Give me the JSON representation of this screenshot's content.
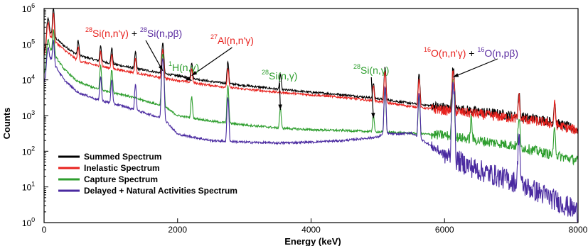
{
  "chart_data": {
    "type": "line",
    "title": "",
    "xlabel": "Energy (keV)",
    "ylabel": "Counts",
    "xlim": [
      0,
      8000
    ],
    "ylim": [
      1,
      1000000
    ],
    "yscale": "log",
    "grid": false,
    "legend_position": "bottom-left",
    "x_ticks": [
      0,
      2000,
      4000,
      6000,
      8000
    ],
    "x_tick_labels": [
      "0",
      "2000",
      "4000",
      "6000",
      "8000"
    ],
    "y_ticks": [
      1,
      10,
      100,
      1000,
      10000,
      100000,
      1000000
    ],
    "y_tick_labels": [
      {
        "base": "10",
        "exp": "0"
      },
      {
        "base": "10",
        "exp": "1"
      },
      {
        "base": "10",
        "exp": "2"
      },
      {
        "base": "10",
        "exp": "3"
      },
      {
        "base": "10",
        "exp": "4"
      },
      {
        "base": "10",
        "exp": "5"
      },
      {
        "base": "10",
        "exp": "6"
      }
    ],
    "series": [
      {
        "name": "Summed Spectrum",
        "color": "#000000",
        "baseline": [
          [
            0,
            60000
          ],
          [
            100,
            200000
          ],
          [
            300,
            90000
          ],
          [
            500,
            50000
          ],
          [
            800,
            35000
          ],
          [
            1200,
            24000
          ],
          [
            1800,
            15000
          ],
          [
            2500,
            9000
          ],
          [
            3000,
            7000
          ],
          [
            3500,
            5500
          ],
          [
            4000,
            4500
          ],
          [
            4500,
            3800
          ],
          [
            5000,
            3000
          ],
          [
            5500,
            2200
          ],
          [
            6000,
            1700
          ],
          [
            6500,
            1300
          ],
          [
            7000,
            1000
          ],
          [
            7500,
            750
          ],
          [
            8000,
            400
          ]
        ],
        "peaks": [
          [
            60,
            400000,
            15
          ],
          [
            140,
            900000,
            10
          ],
          [
            511,
            80000,
            10
          ],
          [
            847,
            60000,
            10
          ],
          [
            1014,
            50000,
            10
          ],
          [
            1369,
            40000,
            10
          ],
          [
            1778,
            90000,
            12
          ],
          [
            2211,
            20000,
            10
          ],
          [
            2754,
            25000,
            10
          ],
          [
            3540,
            9000,
            10
          ],
          [
            4934,
            5000,
            10
          ],
          [
            5108,
            20000,
            10
          ],
          [
            5618,
            12000,
            10
          ],
          [
            6129,
            20000,
            12
          ],
          [
            7115,
            3000,
            10
          ],
          [
            7650,
            2000,
            10
          ]
        ]
      },
      {
        "name": "Inelastic Spectrum",
        "color": "#e8221e",
        "baseline": [
          [
            0,
            50000
          ],
          [
            100,
            150000
          ],
          [
            300,
            70000
          ],
          [
            500,
            35000
          ],
          [
            800,
            25000
          ],
          [
            1200,
            18000
          ],
          [
            1800,
            11000
          ],
          [
            2500,
            7000
          ],
          [
            3000,
            5500
          ],
          [
            3500,
            4500
          ],
          [
            4000,
            3800
          ],
          [
            4500,
            3200
          ],
          [
            5000,
            2500
          ],
          [
            5500,
            1800
          ],
          [
            6000,
            1400
          ],
          [
            6500,
            1100
          ],
          [
            7000,
            850
          ],
          [
            7500,
            650
          ],
          [
            8000,
            380
          ]
        ],
        "peaks": [
          [
            60,
            300000,
            15
          ],
          [
            140,
            600000,
            10
          ],
          [
            511,
            50000,
            10
          ],
          [
            847,
            40000,
            10
          ],
          [
            1014,
            30000,
            10
          ],
          [
            1369,
            25000,
            10
          ],
          [
            1778,
            60000,
            12
          ],
          [
            2211,
            12000,
            10
          ],
          [
            2754,
            15000,
            10
          ],
          [
            4934,
            4200,
            10
          ],
          [
            5108,
            15000,
            10
          ],
          [
            5618,
            9000,
            10
          ],
          [
            6129,
            15000,
            12
          ],
          [
            7115,
            2500,
            10
          ],
          [
            7650,
            1500,
            10
          ]
        ]
      },
      {
        "name": "Capture Spectrum",
        "color": "#2e9e2e",
        "baseline": [
          [
            0,
            15000
          ],
          [
            100,
            70000
          ],
          [
            300,
            20000
          ],
          [
            500,
            9000
          ],
          [
            800,
            5500
          ],
          [
            1200,
            3800
          ],
          [
            1800,
            1800
          ],
          [
            2000,
            1000
          ],
          [
            2500,
            700
          ],
          [
            3000,
            550
          ],
          [
            3500,
            450
          ],
          [
            4000,
            400
          ],
          [
            4500,
            380
          ],
          [
            5000,
            350
          ],
          [
            5500,
            320
          ],
          [
            6000,
            280
          ],
          [
            6500,
            200
          ],
          [
            7000,
            150
          ],
          [
            7500,
            90
          ],
          [
            8000,
            55
          ]
        ],
        "peaks": [
          [
            60,
            100000,
            15
          ],
          [
            140,
            200000,
            10
          ],
          [
            847,
            20000,
            10
          ],
          [
            1014,
            15000,
            10
          ],
          [
            1778,
            50000,
            12
          ],
          [
            2211,
            2500,
            10
          ],
          [
            2754,
            6000,
            10
          ],
          [
            3540,
            1200,
            10
          ],
          [
            4934,
            700,
            10
          ],
          [
            5108,
            5000,
            10
          ],
          [
            5618,
            3000,
            10
          ],
          [
            6129,
            8000,
            12
          ],
          [
            6400,
            600,
            10
          ],
          [
            7115,
            800,
            10
          ],
          [
            7650,
            400,
            10
          ]
        ]
      },
      {
        "name": "Delayed + Natural Activities Spectrum",
        "color": "#4a2aa0",
        "baseline": [
          [
            0,
            8000
          ],
          [
            100,
            40000
          ],
          [
            300,
            10000
          ],
          [
            500,
            4500
          ],
          [
            800,
            2800
          ],
          [
            1200,
            1800
          ],
          [
            1800,
            800
          ],
          [
            2000,
            300
          ],
          [
            2500,
            200
          ],
          [
            3000,
            180
          ],
          [
            3500,
            170
          ],
          [
            4000,
            180
          ],
          [
            4500,
            200
          ],
          [
            5000,
            250
          ],
          [
            5100,
            320
          ],
          [
            5300,
            300
          ],
          [
            5500,
            330
          ],
          [
            6000,
            80
          ],
          [
            6500,
            30
          ],
          [
            7000,
            15
          ],
          [
            7500,
            6
          ],
          [
            8000,
            2
          ]
        ],
        "peaks": [
          [
            60,
            60000,
            15
          ],
          [
            140,
            100000,
            10
          ],
          [
            847,
            10000,
            10
          ],
          [
            1014,
            8000,
            10
          ],
          [
            1369,
            6000,
            10
          ],
          [
            1778,
            40000,
            12
          ],
          [
            2754,
            3000,
            10
          ],
          [
            5108,
            6000,
            10
          ],
          [
            5618,
            4000,
            10
          ],
          [
            6129,
            10000,
            12
          ],
          [
            7115,
            300,
            10
          ]
        ]
      }
    ],
    "annotations": [
      {
        "parts": [
          {
            "t": "28",
            "sup": true,
            "c": "red"
          },
          {
            "t": "Si(n,n'γ)",
            "c": "red"
          },
          {
            "t": " + ",
            "c": "black"
          },
          {
            "t": "28",
            "sup": true,
            "c": "purple"
          },
          {
            "t": "Si(n,pβ)",
            "c": "purple"
          }
        ],
        "arrow_to": [
          1778,
          15000
        ]
      },
      {
        "parts": [
          {
            "t": "27",
            "sup": true,
            "c": "red"
          },
          {
            "t": "Al(n,n'γ)",
            "c": "red"
          }
        ],
        "arrow_to": [
          2211,
          11000
        ]
      },
      {
        "parts": [
          {
            "t": "1",
            "sup": true,
            "c": "green"
          },
          {
            "t": "H(n,γ)",
            "c": "green"
          }
        ],
        "arrow_to": [
          2211,
          8000
        ]
      },
      {
        "parts": [
          {
            "t": "28",
            "sup": true,
            "c": "green"
          },
          {
            "t": "Si(n,γ)",
            "c": "green"
          }
        ],
        "arrow_to": [
          3540,
          1200
        ]
      },
      {
        "parts": [
          {
            "t": "28",
            "sup": true,
            "c": "green"
          },
          {
            "t": "Si(n,γ)",
            "c": "green"
          }
        ],
        "arrow_to": [
          4934,
          700
        ]
      },
      {
        "parts": [
          {
            "t": "16",
            "sup": true,
            "c": "red"
          },
          {
            "t": "O(n,n'γ)",
            "c": "red"
          },
          {
            "t": " + ",
            "c": "black"
          },
          {
            "t": "16",
            "sup": true,
            "c": "purple"
          },
          {
            "t": "O(n,pβ)",
            "c": "purple"
          }
        ],
        "arrow_to": [
          6129,
          10000
        ]
      }
    ]
  },
  "colors": {
    "red": "#e8221e",
    "green": "#2e9e2e",
    "purple": "#5a2ba0",
    "black": "#000000"
  }
}
